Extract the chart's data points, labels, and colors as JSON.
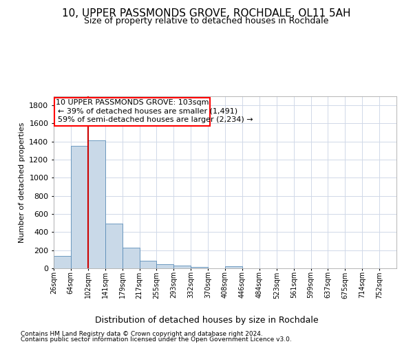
{
  "title_line1": "10, UPPER PASSMONDS GROVE, ROCHDALE, OL11 5AH",
  "title_line2": "Size of property relative to detached houses in Rochdale",
  "xlabel": "Distribution of detached houses by size in Rochdale",
  "ylabel": "Number of detached properties",
  "footer_line1": "Contains HM Land Registry data © Crown copyright and database right 2024.",
  "footer_line2": "Contains public sector information licensed under the Open Government Licence v3.0.",
  "property_size": 103,
  "property_label": "10 UPPER PASSMONDS GROVE: 103sqm",
  "annotation_line1": "← 39% of detached houses are smaller (1,491)",
  "annotation_line2": "59% of semi-detached houses are larger (2,234) →",
  "bar_color": "#c9d9e8",
  "bar_edge_color": "#5b8db8",
  "highlight_color": "#cc0000",
  "grid_color": "#d0d8e8",
  "bins": [
    26,
    64,
    102,
    141,
    179,
    217,
    255,
    293,
    332,
    370,
    408,
    446,
    484,
    523,
    561,
    599,
    637,
    675,
    714,
    752,
    790
  ],
  "bar_heights": [
    135,
    1352,
    1410,
    492,
    225,
    85,
    48,
    27,
    15,
    0,
    20,
    0,
    0,
    0,
    0,
    0,
    0,
    0,
    0,
    0
  ],
  "ylim": [
    0,
    1900
  ],
  "yticks": [
    0,
    200,
    400,
    600,
    800,
    1000,
    1200,
    1400,
    1600,
    1800
  ],
  "figsize": [
    6.0,
    5.0
  ],
  "dpi": 100
}
